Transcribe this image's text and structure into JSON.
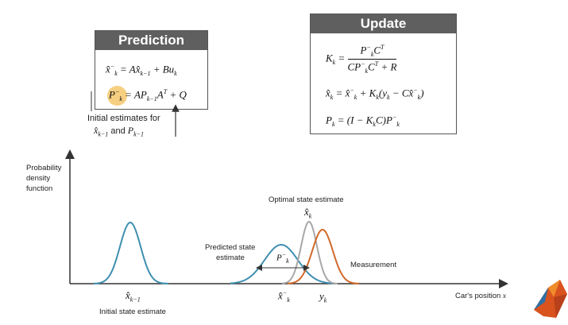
{
  "prediction": {
    "title": "Prediction",
    "note_line1": "Initial estimates for",
    "note_and": "and"
  },
  "update": {
    "title": "Update"
  },
  "plot": {
    "ylabel_line1": "Probability",
    "ylabel_line2": "density",
    "ylabel_line3": "function",
    "xlabel": "Car's position",
    "xlabel_var": "x",
    "initial_label": "Initial state estimate",
    "predicted_label_line1": "Predicted state",
    "predicted_label_line2": "estimate",
    "optimal_label": "Optimal state estimate",
    "measurement_label": "Measurement"
  },
  "colors": {
    "header_gray": "#5f5f5f",
    "prior_blue": "#3f8fb0",
    "optimal_gray": "#a8a8a8",
    "measurement_orange": "#d2692a",
    "highlight_yellow": "#f5c76b"
  }
}
